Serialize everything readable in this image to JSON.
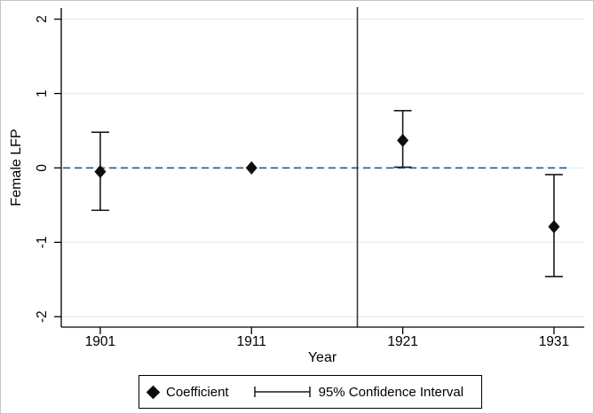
{
  "chart_data": {
    "type": "scatter",
    "subtype": "coefficient-plot-with-error-bars",
    "title": "",
    "xlabel": "Year",
    "ylabel": "Female LFP",
    "x": [
      1901,
      1911,
      1921,
      1931
    ],
    "series": [
      {
        "name": "Coefficient",
        "values": [
          -0.05,
          0.0,
          0.37,
          -0.79
        ]
      },
      {
        "name": "95% CI lower bound",
        "values": [
          -0.57,
          0.0,
          0.01,
          -1.46
        ]
      },
      {
        "name": "95% CI upper bound",
        "values": [
          0.48,
          0.0,
          0.77,
          -0.09
        ]
      }
    ],
    "xticks": [
      1901,
      1911,
      1921,
      1931
    ],
    "yticks": [
      2,
      1,
      0,
      -1,
      -2
    ],
    "xlim": [
      1898.42,
      1933.0
    ],
    "ylim": [
      -2.14,
      2.15
    ],
    "grid": "horizontal",
    "legend_position": "bottom-outside",
    "reference_lines": {
      "hline": {
        "y": 0,
        "style": "dashed"
      },
      "vline": {
        "x": 1918,
        "style": "solid"
      }
    }
  },
  "legend": {
    "coefficient_label": "Coefficient",
    "ci_label": "95% Confidence Interval"
  },
  "colors": {
    "marker": "#0d0d0d",
    "error_bar": "#1a1a1a",
    "zero_line": "#2a5783",
    "vline": "#3a3a3a",
    "axis": "#000000",
    "grid": "#e6ecef",
    "text": "#000000",
    "frame": "#c6c6c6",
    "background": "#ffffff"
  }
}
